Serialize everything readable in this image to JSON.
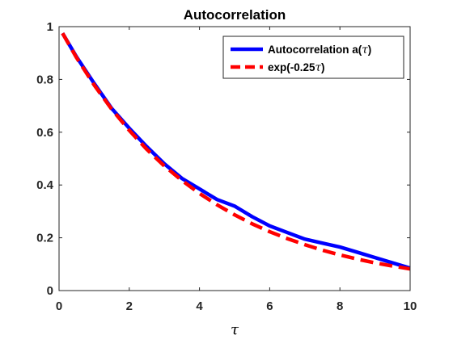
{
  "chart_data": {
    "type": "line",
    "title": "Autocorrelation",
    "xlabel": "τ",
    "ylabel": "",
    "xlim": [
      0,
      10
    ],
    "ylim": [
      0,
      1
    ],
    "xticks": [
      0,
      2,
      4,
      6,
      8,
      10
    ],
    "yticks": [
      0,
      0.2,
      0.4,
      0.6,
      0.8,
      1
    ],
    "xtick_labels": [
      "0",
      "2",
      "4",
      "6",
      "8",
      "10"
    ],
    "ytick_labels": [
      "0",
      "0.2",
      "0.4",
      "0.6",
      "0.8",
      "1"
    ],
    "grid": false,
    "legend_position": "top-right",
    "series": [
      {
        "name_prefix": "Autocorrelation a(",
        "name_var": "τ",
        "name_suffix": ")",
        "color": "#0000ff",
        "style": "solid",
        "x": [
          0.1,
          0.5,
          1.0,
          1.5,
          2.0,
          2.5,
          3.0,
          3.5,
          4.0,
          4.5,
          5.0,
          5.5,
          6.0,
          6.5,
          7.0,
          7.5,
          8.0,
          8.5,
          9.0,
          9.5,
          10.0
        ],
        "values": [
          0.975,
          0.885,
          0.785,
          0.69,
          0.615,
          0.545,
          0.48,
          0.425,
          0.385,
          0.345,
          0.32,
          0.28,
          0.245,
          0.22,
          0.195,
          0.18,
          0.165,
          0.145,
          0.125,
          0.105,
          0.085
        ]
      },
      {
        "name_prefix": "exp(-0.25",
        "name_var": "τ",
        "name_suffix": ")",
        "color": "#ff0000",
        "style": "dashed",
        "x": [
          0.1,
          0.5,
          1.0,
          1.5,
          2.0,
          2.5,
          3.0,
          3.5,
          4.0,
          4.5,
          5.0,
          5.5,
          6.0,
          6.5,
          7.0,
          7.5,
          8.0,
          8.5,
          9.0,
          9.5,
          10.0
        ],
        "values": [
          0.975,
          0.882,
          0.779,
          0.687,
          0.607,
          0.535,
          0.472,
          0.417,
          0.368,
          0.325,
          0.287,
          0.253,
          0.223,
          0.197,
          0.174,
          0.153,
          0.135,
          0.119,
          0.105,
          0.093,
          0.082
        ]
      }
    ]
  }
}
